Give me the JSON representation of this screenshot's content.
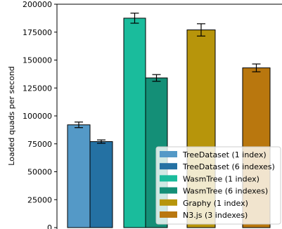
{
  "chart_data": {
    "type": "bar",
    "ylabel": "Loaded quads per second",
    "xlabel": "",
    "ylim": [
      0,
      200000
    ],
    "yticks": [
      0,
      25000,
      50000,
      75000,
      100000,
      125000,
      150000,
      175000,
      200000
    ],
    "ytick_labels": [
      "0",
      "25000",
      "50000",
      "75000",
      "100000",
      "125000",
      "150000",
      "175000",
      "200000"
    ],
    "grid": false,
    "legend_position": "bottom-right",
    "series": [
      {
        "name": "TreeDataset (1 index)",
        "value": 92000,
        "error": 2500,
        "color": "#5499c7"
      },
      {
        "name": "TreeDataset (6 indexes)",
        "value": 77000,
        "error": 1500,
        "color": "#2471a3"
      },
      {
        "name": "WasmTree (1 index)",
        "value": 187500,
        "error": 4500,
        "color": "#1abc9c"
      },
      {
        "name": "WasmTree (6 indexes)",
        "value": 134000,
        "error": 3000,
        "color": "#148f77"
      },
      {
        "name": "Graphy (1 index)",
        "value": 177000,
        "error": 5500,
        "color": "#b7950b"
      },
      {
        "name": "N3.js (3 indexes)",
        "value": 143000,
        "error": 3500,
        "color": "#b9770e"
      }
    ]
  }
}
